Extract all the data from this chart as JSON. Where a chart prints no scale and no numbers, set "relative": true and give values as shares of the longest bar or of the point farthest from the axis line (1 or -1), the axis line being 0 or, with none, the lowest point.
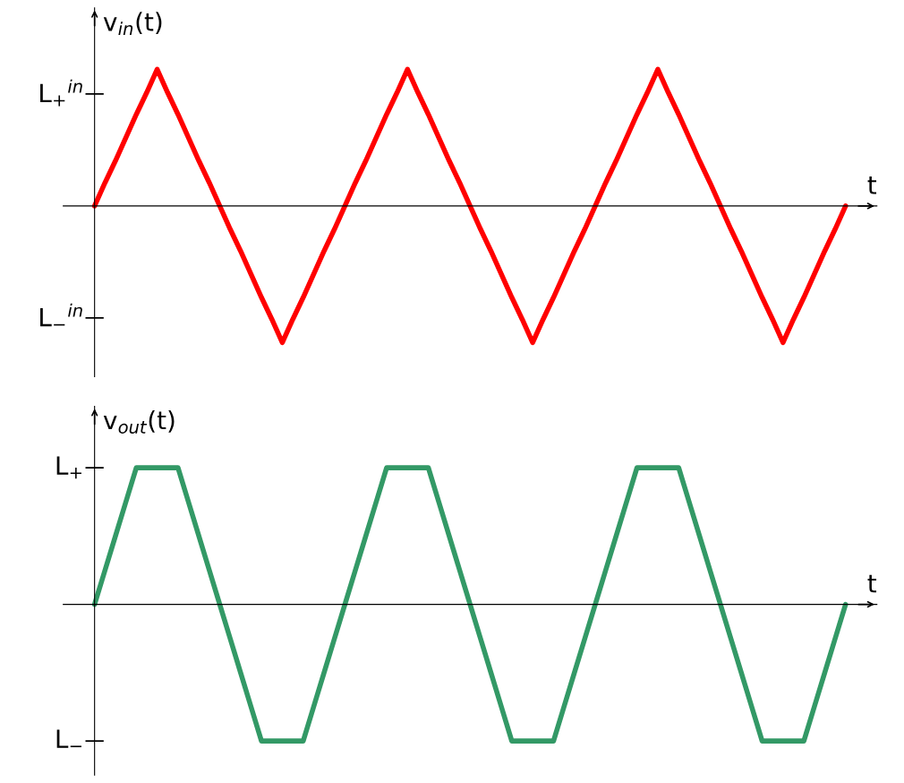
{
  "chart_data": [
    {
      "type": "line",
      "relative": true,
      "ylabel": "v$_{in}$(t)",
      "xlabel": "t",
      "marker": "none",
      "line_style": "solid",
      "categories": [
        null,
        null,
        null,
        null,
        null,
        null,
        null,
        null,
        null,
        null,
        null,
        null,
        null,
        null,
        null,
        null,
        null,
        null,
        null,
        null,
        null,
        null,
        null,
        null,
        null,
        null,
        null,
        null,
        null,
        null,
        null,
        null,
        null,
        null,
        null,
        null,
        null,
        null,
        null,
        null,
        null,
        null,
        null,
        null,
        null,
        null,
        null,
        null,
        null,
        null,
        null,
        null,
        null,
        null,
        null,
        null,
        null,
        null,
        null,
        null,
        null,
        null,
        null,
        null,
        null,
        null,
        null,
        null,
        null,
        null,
        null,
        null,
        null
      ],
      "series": [
        {
          "color": "#ff0000",
          "values": [
            0,
            0.17,
            0.33,
            0.5,
            0.67,
            0.83,
            1,
            0.83,
            0.67,
            0.5,
            0.33,
            0.17,
            0,
            -0.17,
            -0.33,
            -0.5,
            -0.67,
            -0.83,
            -1,
            -0.83,
            -0.67,
            -0.5,
            -0.33,
            -0.17,
            0,
            0.17,
            0.33,
            0.5,
            0.67,
            0.83,
            1,
            0.83,
            0.67,
            0.5,
            0.33,
            0.17,
            0,
            -0.17,
            -0.33,
            -0.5,
            -0.67,
            -0.83,
            -1,
            -0.83,
            -0.67,
            -0.5,
            -0.33,
            -0.17,
            0,
            0.17,
            0.33,
            0.5,
            0.67,
            0.83,
            1,
            0.83,
            0.67,
            0.5,
            0.33,
            0.17,
            0,
            -0.17,
            -0.33,
            -0.5,
            -0.67,
            -0.83,
            -1,
            -0.83,
            -0.67,
            -0.5,
            -0.33,
            -0.17,
            0
          ]
        }
      ],
      "annotations": [
        "L$_{+}$$^{in}$",
        "L$_{−}$$^{in}$"
      ]
    },
    {
      "type": "line",
      "relative": true,
      "ylabel": "v$_{out}$(t)",
      "xlabel": "t",
      "marker": "none",
      "line_style": "solid",
      "categories": [
        null,
        null,
        null,
        null,
        null,
        null,
        null,
        null,
        null,
        null,
        null,
        null,
        null,
        null,
        null,
        null,
        null,
        null,
        null,
        null,
        null,
        null,
        null,
        null,
        null,
        null,
        null,
        null,
        null,
        null,
        null,
        null,
        null,
        null,
        null,
        null,
        null,
        null,
        null,
        null,
        null,
        null,
        null,
        null,
        null,
        null,
        null,
        null,
        null,
        null,
        null,
        null,
        null,
        null,
        null,
        null,
        null,
        null,
        null,
        null,
        null,
        null,
        null,
        null,
        null,
        null,
        null,
        null,
        null,
        null,
        null,
        null,
        null
      ],
      "series": [
        {
          "color": "#339966",
          "values": [
            0,
            0.25,
            0.5,
            0.75,
            1,
            1,
            1,
            1,
            1,
            0.75,
            0.5,
            0.25,
            0,
            -0.25,
            -0.5,
            -0.75,
            -1,
            -1,
            -1,
            -1,
            -1,
            -0.75,
            -0.5,
            -0.25,
            0,
            0.25,
            0.5,
            0.75,
            1,
            1,
            1,
            1,
            1,
            0.75,
            0.5,
            0.25,
            0,
            -0.25,
            -0.5,
            -0.75,
            -1,
            -1,
            -1,
            -1,
            -1,
            -0.75,
            -0.5,
            -0.25,
            0,
            0.25,
            0.5,
            0.75,
            1,
            1,
            1,
            1,
            1,
            0.75,
            0.5,
            0.25,
            0,
            -0.25,
            -0.5,
            -0.75,
            -1,
            -1,
            -1,
            -1,
            -1,
            -0.75,
            -0.5,
            -0.25,
            0
          ]
        }
      ],
      "annotations": [
        "L$_{+}$",
        "L$_{−}$"
      ]
    }
  ]
}
